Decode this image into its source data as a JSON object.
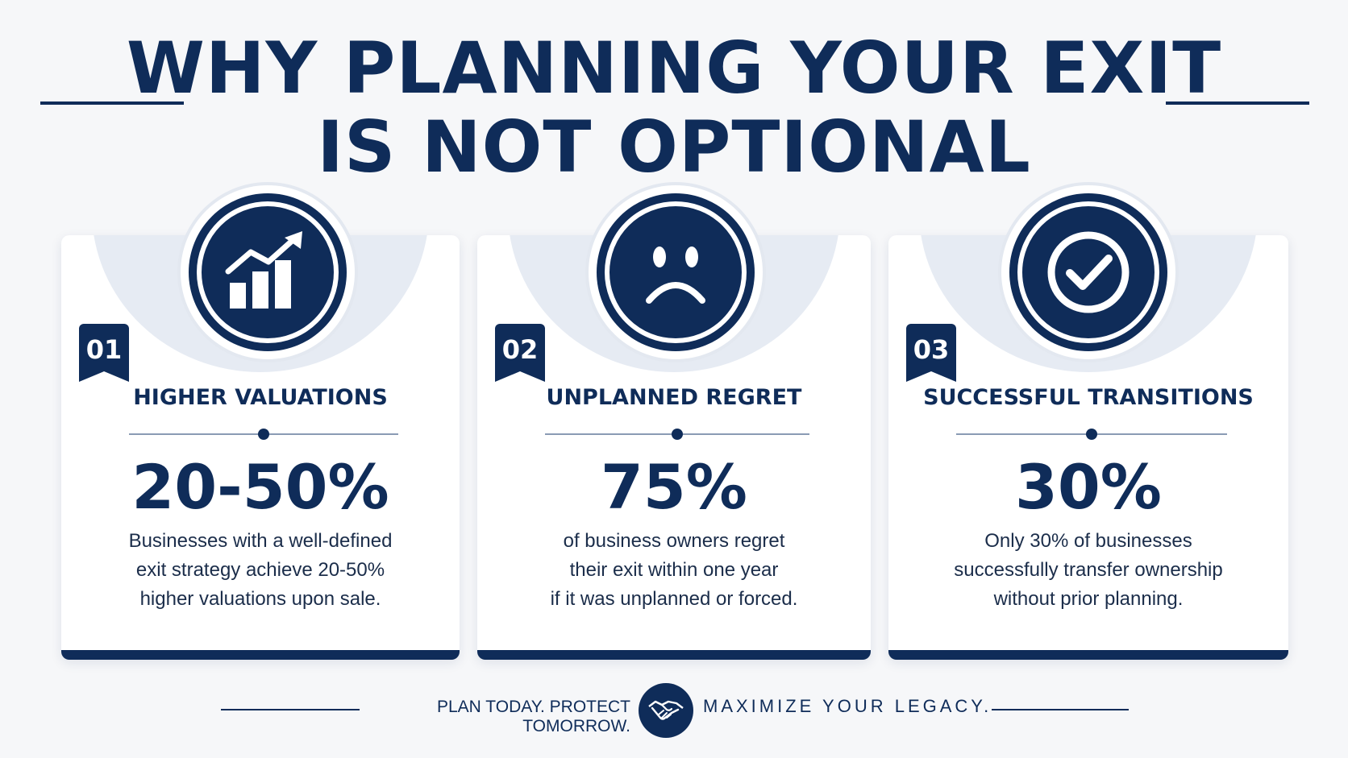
{
  "title": {
    "line1": "WHY PLANNING YOUR EXIT",
    "line2": "IS NOT OPTIONAL"
  },
  "cards": [
    {
      "number": "01",
      "icon": "rising-chart-icon",
      "title": "HIGHER VALUATIONS",
      "stat": "20-50%",
      "description": [
        "Businesses with a well-defined",
        "exit strategy achieve 20-50%",
        "higher valuations upon sale."
      ]
    },
    {
      "number": "02",
      "icon": "sad-face-icon",
      "title": "UNPLANNED REGRET",
      "stat": "75%",
      "description": [
        "of business owners regret",
        "their exit within one year",
        "if it was unplanned or forced."
      ]
    },
    {
      "number": "03",
      "icon": "checkmark-icon",
      "title": "SUCCESSFUL TRANSITIONS",
      "stat": "30%",
      "description": [
        "Only 30% of businesses",
        "successfully transfer ownership",
        "without prior planning."
      ]
    }
  ],
  "footer": {
    "left_text": "PLAN TODAY. PROTECT TOMORROW.",
    "icon": "handshake-icon",
    "right_text": "MAXIMIZE YOUR LEGACY."
  },
  "colors": {
    "primary": "#0f2c59",
    "card_bg": "#ffffff",
    "page_bg": "#f6f7f9",
    "arc": "#e6ebf3"
  }
}
